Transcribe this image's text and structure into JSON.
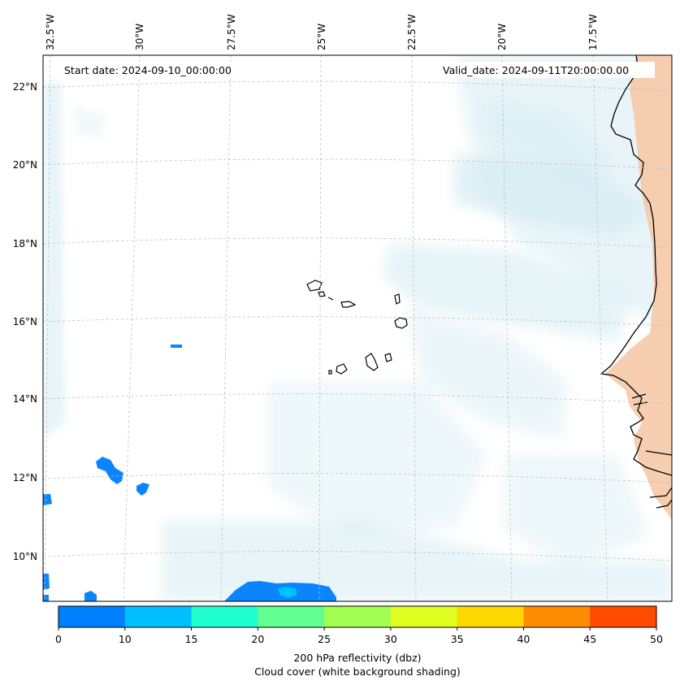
{
  "map": {
    "start_label": "Start date: 2024-09-10_00:00:00",
    "valid_label": "Valid_date: 2024-09-11T20:00:00.00",
    "lon_labels": [
      "32.5°W",
      "30°W",
      "27.5°W",
      "25°W",
      "22.5°W",
      "20°W",
      "17.5°W"
    ],
    "lat_labels": [
      "22°N",
      "20°N",
      "18°N",
      "16°N",
      "14°N",
      "12°N",
      "10°N"
    ],
    "gridlines": true
  },
  "colorbar": {
    "ticks": [
      "0",
      "10",
      "15",
      "20",
      "25",
      "30",
      "35",
      "40",
      "45",
      "50"
    ],
    "colors": [
      "#0080ff",
      "#00c0ff",
      "#20ffd0",
      "#60ff90",
      "#a0ff50",
      "#e0ff20",
      "#ffd800",
      "#ff8c00",
      "#ff4a00"
    ],
    "label_line1": "200 hPa reflectivity (dbz)",
    "label_line2": "Cloud cover (white background shading)"
  },
  "colors": {
    "cloud": "#d6ecf3",
    "land": "#f6c9a6",
    "coast": "#000000",
    "reflectivity": "#0a84ff"
  }
}
